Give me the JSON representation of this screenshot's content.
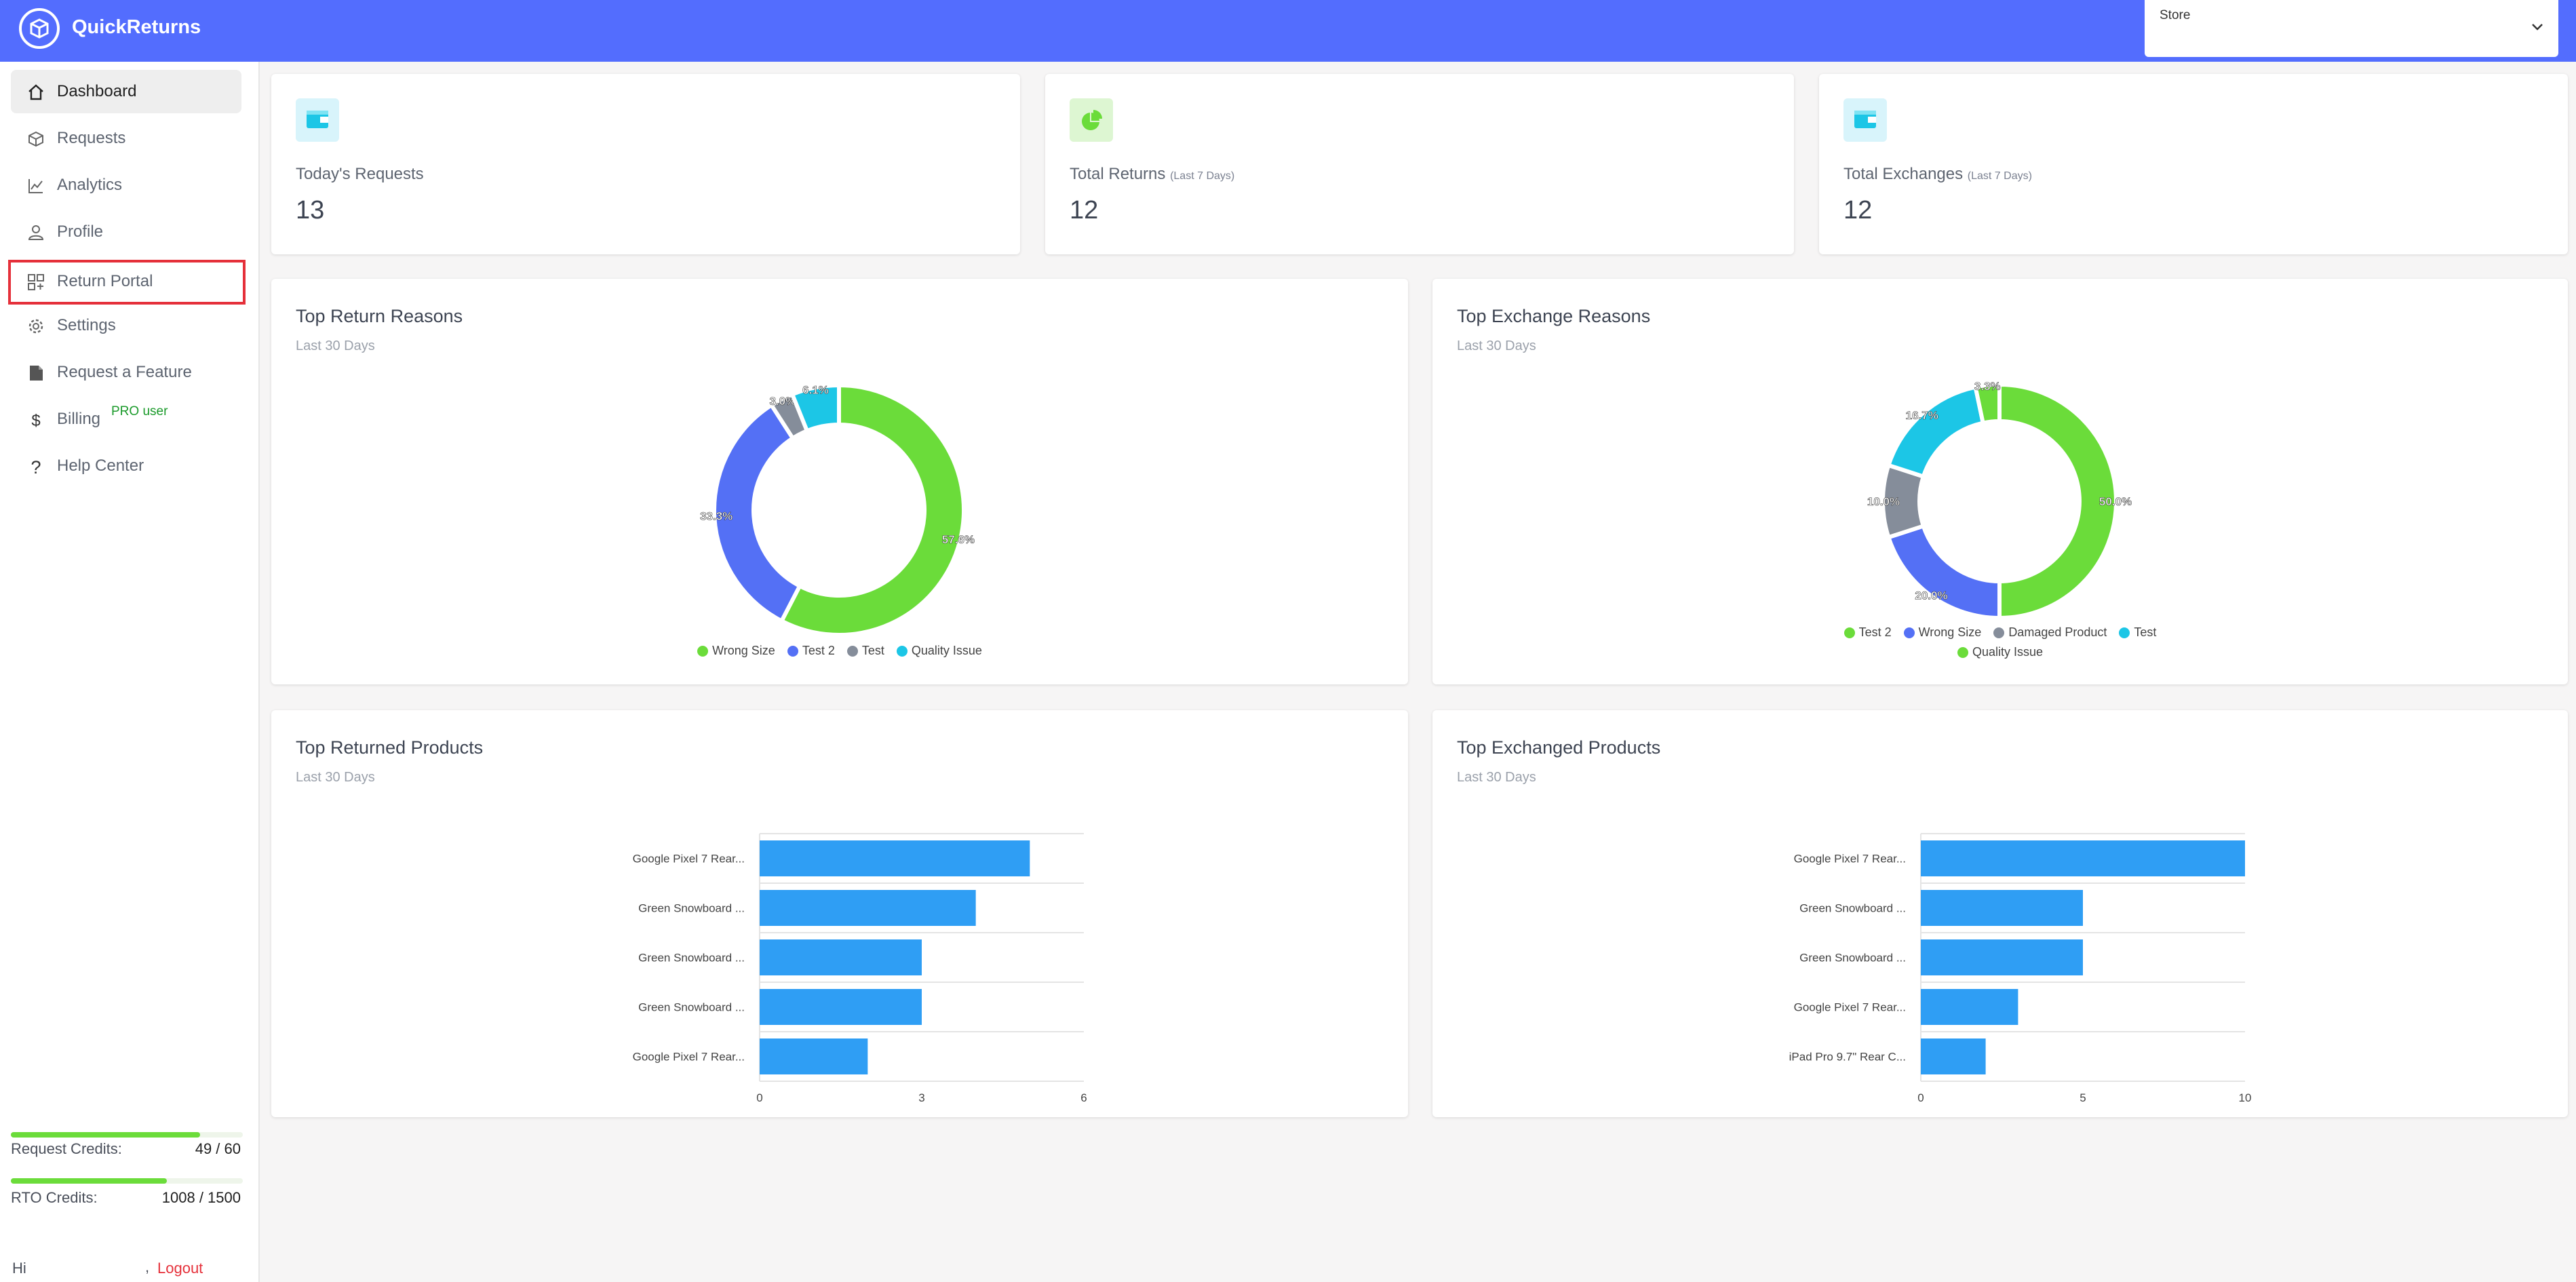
{
  "app": {
    "title": "QuickReturns"
  },
  "header": {
    "store_label": "Store"
  },
  "sidebar": {
    "items": [
      {
        "label": "Dashboard",
        "icon": "home-icon"
      },
      {
        "label": "Requests",
        "icon": "box-icon"
      },
      {
        "label": "Analytics",
        "icon": "chart-line-icon"
      },
      {
        "label": "Profile",
        "icon": "user-icon"
      },
      {
        "label": "Return Portal",
        "icon": "qr-grid-icon"
      },
      {
        "label": "Settings",
        "icon": "gear-icon"
      },
      {
        "label": "Request a Feature",
        "icon": "document-icon"
      },
      {
        "label": "Billing",
        "icon": "dollar-icon",
        "badge": "PRO user"
      },
      {
        "label": "Help Center",
        "icon": "question-icon"
      }
    ],
    "credits": [
      {
        "label": "Request Credits:",
        "value": "49 / 60",
        "fill": 0.8167
      },
      {
        "label": "RTO Credits:",
        "value": "1008 / 1500",
        "fill": 0.672
      }
    ],
    "greeting": "Hi",
    "comma": ",",
    "logout": "Logout"
  },
  "stats": [
    {
      "label": "Today's Requests",
      "sub": "",
      "value": "13",
      "icon": "wallet-icon"
    },
    {
      "label": "Total Returns",
      "sub": "(Last 7 Days)",
      "value": "12",
      "icon": "pie-icon"
    },
    {
      "label": "Total Exchanges",
      "sub": "(Last 7 Days)",
      "value": "12",
      "icon": "wallet-icon"
    }
  ],
  "panels": {
    "return_reasons": {
      "title": "Top Return Reasons",
      "subtitle": "Last 30 Days"
    },
    "exchange_reasons": {
      "title": "Top Exchange Reasons",
      "subtitle": "Last 30 Days"
    },
    "returned_products": {
      "title": "Top Returned Products",
      "subtitle": "Last 30 Days"
    },
    "exchanged_products": {
      "title": "Top Exchanged Products",
      "subtitle": "Last 30 Days"
    }
  },
  "colors": {
    "accent": "#536dfe",
    "green": "#6bdc3a",
    "blue": "#5470f5",
    "gray": "#858d9a",
    "cyan": "#1cc6e6",
    "bar": "#2f9ef4",
    "alert": "#e5303a"
  },
  "chart_data": [
    {
      "type": "pie",
      "title": "Top Return Reasons",
      "labels": [
        "Wrong Size",
        "Test 2",
        "Test",
        "Quality Issue"
      ],
      "values": [
        57.6,
        33.3,
        3.0,
        6.1
      ],
      "display_labels": [
        "57.6%",
        "33.3%",
        "3.0%",
        "6.1%"
      ],
      "colors": [
        "#6bdc3a",
        "#5470f5",
        "#858d9a",
        "#1cc6e6"
      ],
      "legend": "bottom"
    },
    {
      "type": "pie",
      "title": "Top Exchange Reasons",
      "labels": [
        "Test 2",
        "Wrong Size",
        "Damaged Product",
        "Test",
        "Quality Issue"
      ],
      "values": [
        50.0,
        20.0,
        10.0,
        16.7,
        3.3
      ],
      "display_labels": [
        "50.0%",
        "20.0%",
        "10.0%",
        "16.7%",
        "3.3%"
      ],
      "colors": [
        "#6bdc3a",
        "#5470f5",
        "#858d9a",
        "#1cc6e6",
        "#6bdc3a"
      ],
      "legend": "bottom"
    },
    {
      "type": "bar",
      "orientation": "horizontal",
      "title": "Top Returned Products",
      "categories": [
        "Google Pixel 7 Rear...",
        "Green Snowboard ...",
        "Green Snowboard ...",
        "Green Snowboard ...",
        "Google Pixel 7 Rear..."
      ],
      "values": [
        5,
        4,
        3,
        3,
        2
      ],
      "xlim": [
        0,
        6
      ],
      "xticks": [
        0,
        3,
        6
      ],
      "grid": true
    },
    {
      "type": "bar",
      "orientation": "horizontal",
      "title": "Top Exchanged Products",
      "categories": [
        "Google Pixel 7 Rear...",
        "Green Snowboard ...",
        "Green Snowboard ...",
        "Google Pixel 7 Rear...",
        "iPad Pro 9.7\" Rear C..."
      ],
      "values": [
        10,
        5,
        5,
        3,
        2
      ],
      "xlim": [
        0,
        10
      ],
      "xticks": [
        0,
        5,
        10
      ],
      "grid": true
    }
  ]
}
